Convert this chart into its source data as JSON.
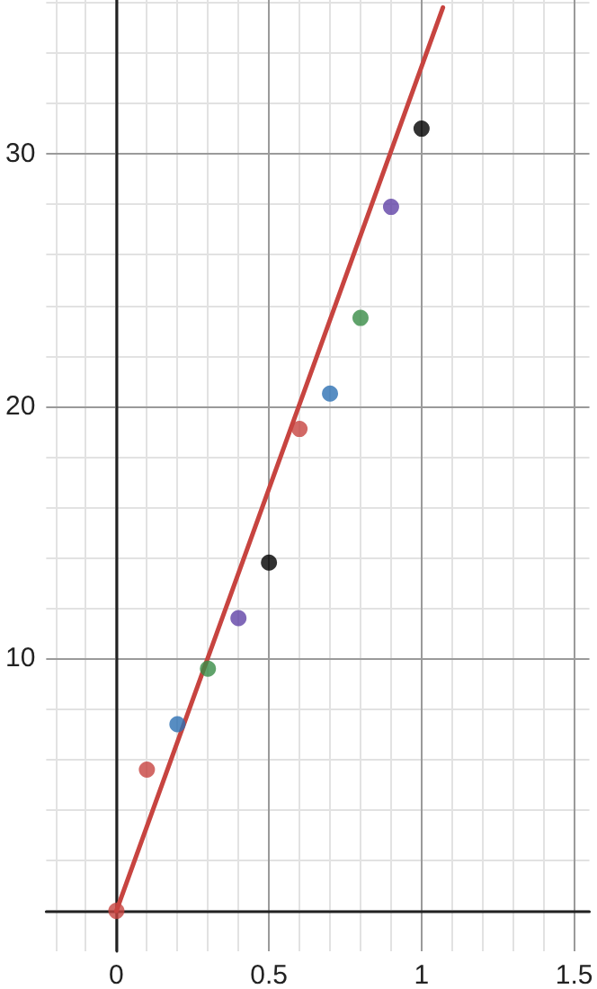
{
  "chart_data": {
    "type": "scatter",
    "marker": "circle",
    "grid": true,
    "xlim": [
      -0.23,
      1.55
    ],
    "ylim": [
      -1.6,
      36.1
    ],
    "xticks": [
      {
        "value": -0.2,
        "label": null
      },
      {
        "value": -0.1,
        "label": null
      },
      {
        "value": 0,
        "label": "0"
      },
      {
        "value": 0.1,
        "label": null
      },
      {
        "value": 0.2,
        "label": null
      },
      {
        "value": 0.3,
        "label": null
      },
      {
        "value": 0.4,
        "label": null
      },
      0.5,
      {
        "value": 0.6,
        "label": null
      },
      {
        "value": 0.7,
        "label": null
      },
      {
        "value": 0.8,
        "label": null
      },
      {
        "value": 0.9,
        "label": null
      },
      1,
      {
        "value": 1.1,
        "label": null
      },
      {
        "value": 1.2,
        "label": null
      },
      {
        "value": 1.3,
        "label": null
      },
      {
        "value": 1.4,
        "label": null
      },
      1.5
    ],
    "yticks": [
      {
        "value": 0,
        "label": null
      },
      {
        "value": 2,
        "label": null
      },
      {
        "value": 4,
        "label": null
      },
      {
        "value": 6,
        "label": null
      },
      {
        "value": 8,
        "label": null
      },
      10,
      {
        "value": 12,
        "label": null
      },
      {
        "value": 14,
        "label": null
      },
      {
        "value": 16,
        "label": null
      },
      {
        "value": 18,
        "label": null
      },
      20,
      {
        "value": 22,
        "label": null
      },
      {
        "value": 24,
        "label": null
      },
      {
        "value": 26,
        "label": null
      },
      {
        "value": 28,
        "label": null
      },
      30,
      {
        "value": 32,
        "label": null
      },
      {
        "value": 34,
        "label": null
      },
      {
        "value": 36,
        "label": null
      }
    ],
    "series": [
      {
        "type": "line",
        "marker": "none",
        "color": "#c74440",
        "x": [
          0,
          1.07
        ],
        "values": [
          0,
          35.8
        ]
      },
      {
        "type": "scatter",
        "x": [
          0,
          0.1,
          0.2,
          0.3,
          0.4,
          0.5,
          0.6,
          0.7,
          0.8,
          0.9,
          1.0
        ],
        "values": [
          0,
          5.6,
          7.4,
          9.6,
          11.6,
          13.8,
          19.1,
          20.5,
          23.5,
          27.9,
          31.0
        ],
        "colors": [
          "#c74440",
          "#c74440",
          "#2d70b3",
          "#388c46",
          "#6042a6",
          "#000000",
          "#c74440",
          "#2d70b3",
          "#388c46",
          "#6042a6",
          "#000000"
        ]
      }
    ]
  }
}
